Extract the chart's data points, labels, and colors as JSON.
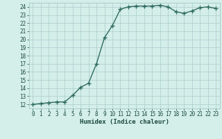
{
  "x": [
    0,
    1,
    2,
    3,
    4,
    5,
    6,
    7,
    8,
    9,
    10,
    11,
    12,
    13,
    14,
    15,
    16,
    17,
    18,
    19,
    20,
    21,
    22,
    23
  ],
  "y": [
    12.0,
    12.1,
    12.2,
    12.3,
    12.3,
    13.1,
    14.1,
    14.6,
    17.0,
    20.2,
    21.7,
    23.7,
    24.0,
    24.1,
    24.1,
    24.1,
    24.2,
    24.0,
    23.4,
    23.2,
    23.5,
    23.9,
    24.0,
    23.8
  ],
  "line_color": "#2e6b5e",
  "bg_color": "#d4eeea",
  "grid_color": "#aacccc",
  "xlabel": "Humidex (Indice chaleur)",
  "ylim": [
    11.5,
    24.5
  ],
  "xlim": [
    -0.5,
    23.5
  ],
  "yticks": [
    12,
    13,
    14,
    15,
    16,
    17,
    18,
    19,
    20,
    21,
    22,
    23,
    24
  ],
  "xticks": [
    0,
    1,
    2,
    3,
    4,
    5,
    6,
    7,
    8,
    9,
    10,
    11,
    12,
    13,
    14,
    15,
    16,
    17,
    18,
    19,
    20,
    21,
    22,
    23
  ],
  "font_color": "#1a4a40",
  "marker": "+",
  "marker_size": 4,
  "line_width": 1.0,
  "tick_fontsize": 5.5,
  "xlabel_fontsize": 6.5
}
